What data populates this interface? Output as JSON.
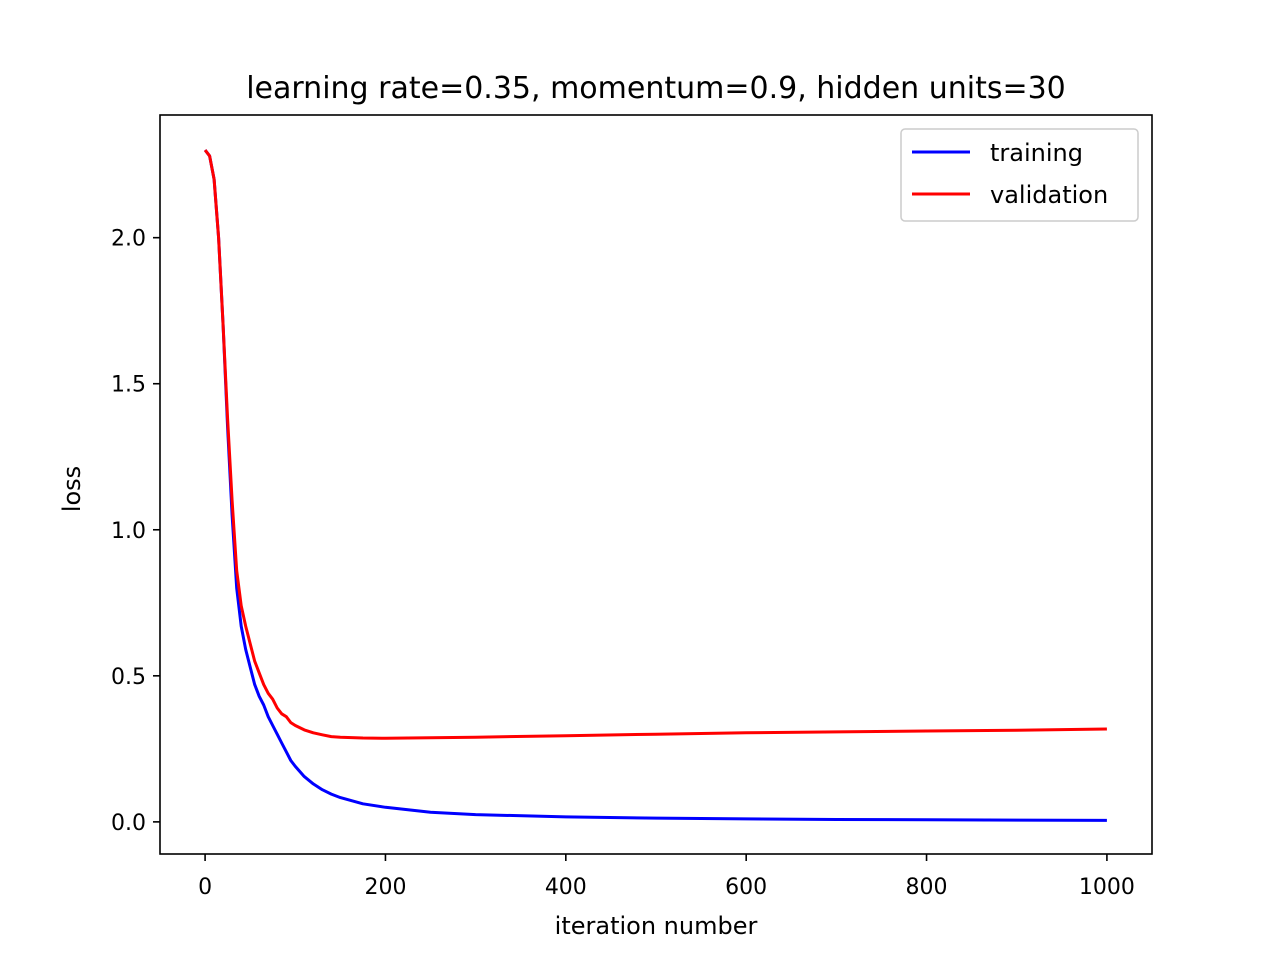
{
  "chart_data": {
    "type": "line",
    "title": "learning rate=0.35, momentum=0.9, hidden units=30",
    "xlabel": "iteration number",
    "ylabel": "loss",
    "xlim": [
      -50,
      1050
    ],
    "ylim": [
      -0.11,
      2.42
    ],
    "xticks": [
      0,
      200,
      400,
      600,
      800,
      1000
    ],
    "xtick_labels": [
      "0",
      "200",
      "400",
      "600",
      "800",
      "1000"
    ],
    "yticks": [
      0.0,
      0.5,
      1.0,
      1.5,
      2.0
    ],
    "ytick_labels": [
      "0.0",
      "0.5",
      "1.0",
      "1.5",
      "2.0"
    ],
    "grid": false,
    "legend_position": "top-right",
    "series": [
      {
        "name": "training",
        "color": "#0000ff",
        "x": [
          0,
          5,
          10,
          15,
          20,
          25,
          30,
          35,
          40,
          45,
          50,
          55,
          60,
          65,
          70,
          75,
          80,
          85,
          90,
          95,
          100,
          110,
          120,
          130,
          140,
          150,
          175,
          200,
          250,
          300,
          400,
          500,
          600,
          700,
          800,
          900,
          1000
        ],
        "values": [
          2.3,
          2.28,
          2.2,
          2.0,
          1.7,
          1.35,
          1.05,
          0.8,
          0.67,
          0.59,
          0.53,
          0.47,
          0.43,
          0.4,
          0.36,
          0.33,
          0.3,
          0.27,
          0.24,
          0.21,
          0.19,
          0.155,
          0.13,
          0.11,
          0.095,
          0.083,
          0.062,
          0.05,
          0.033,
          0.025,
          0.017,
          0.013,
          0.01,
          0.008,
          0.007,
          0.006,
          0.005
        ]
      },
      {
        "name": "validation",
        "color": "#ff0000",
        "x": [
          0,
          5,
          10,
          15,
          20,
          25,
          30,
          35,
          40,
          45,
          50,
          55,
          60,
          65,
          70,
          75,
          80,
          85,
          90,
          95,
          100,
          110,
          120,
          130,
          140,
          150,
          175,
          200,
          250,
          300,
          400,
          500,
          600,
          700,
          800,
          900,
          1000
        ],
        "values": [
          2.3,
          2.28,
          2.2,
          2.0,
          1.7,
          1.38,
          1.1,
          0.86,
          0.74,
          0.67,
          0.61,
          0.55,
          0.51,
          0.47,
          0.44,
          0.42,
          0.39,
          0.37,
          0.36,
          0.34,
          0.33,
          0.315,
          0.305,
          0.298,
          0.292,
          0.29,
          0.287,
          0.286,
          0.288,
          0.29,
          0.295,
          0.3,
          0.305,
          0.308,
          0.311,
          0.314,
          0.318
        ]
      }
    ]
  }
}
